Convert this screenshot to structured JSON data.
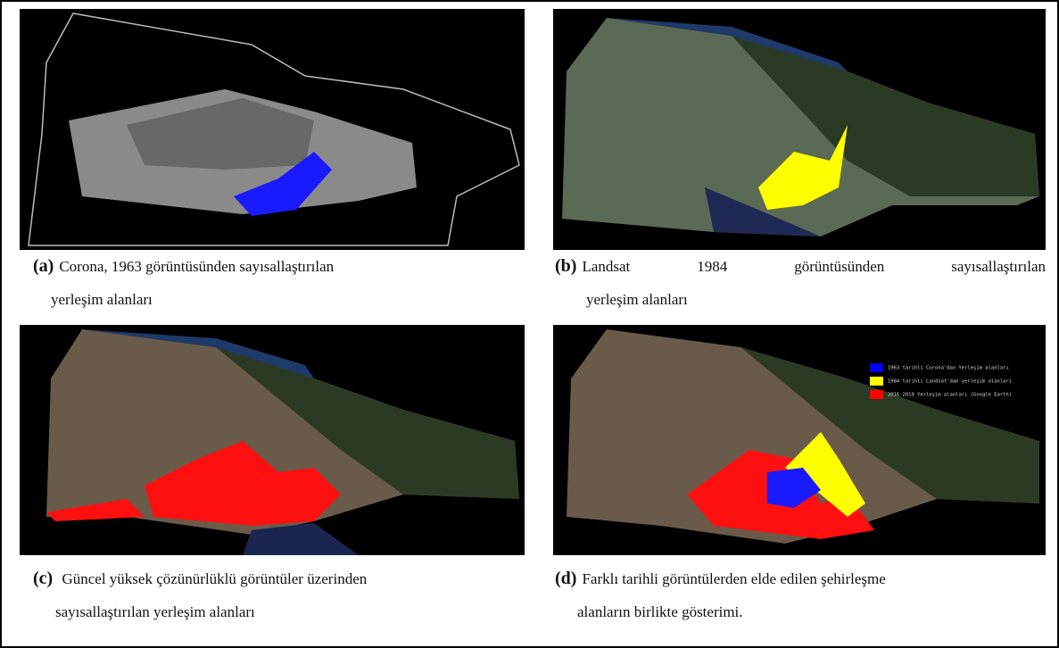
{
  "panels": [
    {
      "label": "(a)",
      "caption_lines": [
        "Corona, 1963 görüntüsünden sayısallaştırılan",
        "yerleşim alanları"
      ]
    },
    {
      "label": "(b)",
      "caption_lines": [
        "Landsat 1984 görüntüsünden sayısallaştırılan",
        "yerleşim alanları"
      ]
    },
    {
      "label": "(c)",
      "caption_lines": [
        "Güncel yüksek çözünürlüklü görüntüler üzerinden",
        "sayısallaştırılan yerleşim alanları"
      ]
    },
    {
      "label": "(d)",
      "caption_lines": [
        "Farklı tarihli görüntülerden elde edilen şehirleşme",
        "alanların birlikte gösterimi."
      ]
    }
  ],
  "legend": [
    "1963 tarihli Corona'dan Yerleşim alanları",
    "1984 tarihli Landsat'dan yerleşim alanları",
    "2016-2019 Yerleşim alanları (Google Earth)"
  ]
}
